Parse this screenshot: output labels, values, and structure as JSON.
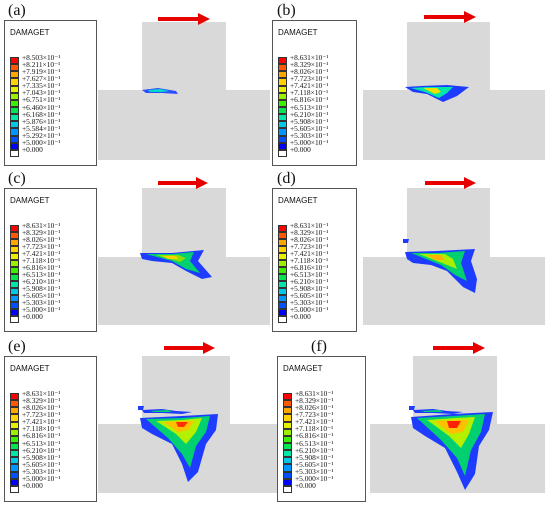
{
  "panels": [
    {
      "id": "a",
      "label": "(a)",
      "legend_title": "DAMAGET",
      "crack_stage": 0,
      "legend_values": [
        "+8.503×10⁻¹",
        "+8.211×10⁻¹",
        "+7.919×10⁻¹",
        "+7.627×10⁻¹",
        "+7.335×10⁻¹",
        "+7.043×10⁻¹",
        "+6.751×10⁻¹",
        "+6.460×10⁻¹",
        "+6.168×10⁻¹",
        "+5.876×10⁻¹",
        "+5.584×10⁻¹",
        "+5.292×10⁻¹",
        "+5.000×10⁻¹",
        "+0.000"
      ]
    },
    {
      "id": "b",
      "label": "(b)",
      "legend_title": "DAMAGET",
      "crack_stage": 1,
      "legend_values": [
        "+8.631×10⁻¹",
        "+8.329×10⁻¹",
        "+8.026×10⁻¹",
        "+7.723×10⁻¹",
        "+7.421×10⁻¹",
        "+7.118×10⁻¹",
        "+6.816×10⁻¹",
        "+6.513×10⁻¹",
        "+6.210×10⁻¹",
        "+5.908×10⁻¹",
        "+5.605×10⁻¹",
        "+5.303×10⁻¹",
        "+5.000×10⁻¹",
        "+0.000"
      ]
    },
    {
      "id": "c",
      "label": "(c)",
      "legend_title": "DAMAGET",
      "crack_stage": 2,
      "legend_values": [
        "+8.631×10⁻¹",
        "+8.329×10⁻¹",
        "+8.026×10⁻¹",
        "+7.723×10⁻¹",
        "+7.421×10⁻¹",
        "+7.118×10⁻¹",
        "+6.816×10⁻¹",
        "+6.513×10⁻¹",
        "+6.210×10⁻¹",
        "+5.908×10⁻¹",
        "+5.605×10⁻¹",
        "+5.303×10⁻¹",
        "+5.000×10⁻¹",
        "+0.000"
      ]
    },
    {
      "id": "d",
      "label": "(d)",
      "legend_title": "DAMAGET",
      "crack_stage": 3,
      "legend_values": [
        "+8.631×10⁻¹",
        "+8.329×10⁻¹",
        "+8.026×10⁻¹",
        "+7.723×10⁻¹",
        "+7.421×10⁻¹",
        "+7.118×10⁻¹",
        "+6.816×10⁻¹",
        "+6.513×10⁻¹",
        "+6.210×10⁻¹",
        "+5.908×10⁻¹",
        "+5.605×10⁻¹",
        "+5.303×10⁻¹",
        "+5.000×10⁻¹",
        "+0.000"
      ]
    },
    {
      "id": "e",
      "label": "(e)",
      "legend_title": "DAMAGET",
      "crack_stage": 4,
      "legend_values": [
        "+8.631×10⁻¹",
        "+8.329×10⁻¹",
        "+8.026×10⁻¹",
        "+7.723×10⁻¹",
        "+7.421×10⁻¹",
        "+7.118×10⁻¹",
        "+6.816×10⁻¹",
        "+6.513×10⁻¹",
        "+6.210×10⁻¹",
        "+5.908×10⁻¹",
        "+5.605×10⁻¹",
        "+5.303×10⁻¹",
        "+5.000×10⁻¹",
        "+0.000"
      ]
    },
    {
      "id": "f",
      "label": "(f)",
      "legend_title": "DAMAGET",
      "crack_stage": 5,
      "legend_values": [
        "+8.631×10⁻¹",
        "+8.329×10⁻¹",
        "+8.026×10⁻¹",
        "+7.723×10⁻¹",
        "+7.421×10⁻¹",
        "+7.118×10⁻¹",
        "+6.816×10⁻¹",
        "+6.513×10⁻¹",
        "+6.210×10⁻¹",
        "+5.908×10⁻¹",
        "+5.605×10⁻¹",
        "+5.303×10⁻¹",
        "+5.000×10⁻¹",
        "+0.000"
      ]
    }
  ],
  "colors": {
    "legend_scale": [
      "#ff0000",
      "#ff5a00",
      "#ffa500",
      "#ffd200",
      "#e6f000",
      "#9bf000",
      "#3cf000",
      "#00e650",
      "#00e6aa",
      "#00c8e6",
      "#0096ff",
      "#0050ff",
      "#0000ff",
      "#ffffff"
    ],
    "block": "#d9d9d9",
    "arrow": "#e60000"
  }
}
